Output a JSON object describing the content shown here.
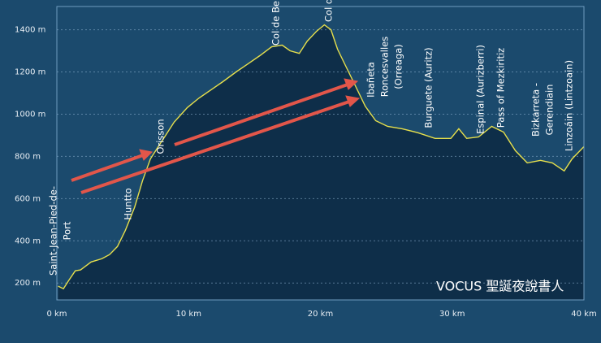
{
  "chart_data": {
    "type": "area",
    "x": [
      0.1,
      0.5,
      0.9,
      1.4,
      1.8,
      2.6,
      3.4,
      4.0,
      4.6,
      5.2,
      5.9,
      6.5,
      7.1,
      7.7,
      8.3,
      8.9,
      9.9,
      10.8,
      11.7,
      12.6,
      13.6,
      14.5,
      15.4,
      16.3,
      17.1,
      17.7,
      18.4,
      19.0,
      19.7,
      20.3,
      20.8,
      21.3,
      21.9,
      22.5,
      23.4,
      24.2,
      25.1,
      26.2,
      27.4,
      28.7,
      29.9,
      30.5,
      31.1,
      32.0,
      33.0,
      33.9,
      34.8,
      35.7,
      36.7,
      37.6,
      38.5,
      39.1,
      40.0
    ],
    "y": [
      185,
      173,
      212,
      258,
      262,
      300,
      315,
      335,
      373,
      450,
      558,
      685,
      788,
      846,
      904,
      962,
      1031,
      1077,
      1115,
      1154,
      1200,
      1238,
      1277,
      1319,
      1327,
      1300,
      1288,
      1346,
      1392,
      1423,
      1400,
      1308,
      1231,
      1154,
      1038,
      969,
      942,
      931,
      912,
      885,
      885,
      931,
      885,
      892,
      942,
      915,
      827,
      769,
      781,
      769,
      731,
      788,
      846
    ],
    "color": "#e6df4c",
    "fill": "#0e2e49",
    "xlim": [
      0,
      40
    ],
    "ylim": [
      120,
      1510
    ],
    "xticks": [
      {
        "value": 0,
        "label": "0 km"
      },
      {
        "value": 10,
        "label": "10 km"
      },
      {
        "value": 20,
        "label": "20 km"
      },
      {
        "value": 30,
        "label": "30 km"
      },
      {
        "value": 40,
        "label": "40 km"
      }
    ],
    "yticks": [
      {
        "value": 200,
        "label": "200 m"
      },
      {
        "value": 400,
        "label": "400 m"
      },
      {
        "value": 600,
        "label": "600 m"
      },
      {
        "value": 800,
        "label": "800 m"
      },
      {
        "value": 1000,
        "label": "1000 m"
      },
      {
        "value": 1200,
        "label": "1200 m"
      },
      {
        "value": 1400,
        "label": "1400 m"
      }
    ],
    "grid": true,
    "annotations": [
      [
        "Saint-Jean-Pied-de-",
        "Port"
      ],
      [
        "Huntto"
      ],
      [
        "Orisson"
      ],
      [
        "Col de Be"
      ],
      [
        "Col d"
      ],
      [
        "Ibañeta"
      ],
      [
        "Roncesvalles",
        "(Orreaga)"
      ],
      [
        "Burguete (Auritz)"
      ],
      [
        "Espinal (Aurizberri)"
      ],
      [
        "Pass of Mezkiritiz"
      ],
      [
        "Bizkarreta -",
        "Gerendiain"
      ],
      [
        "Linzoáin (Lintzoain)"
      ]
    ],
    "watermark": "VOCUS 聖誕夜說書人"
  }
}
